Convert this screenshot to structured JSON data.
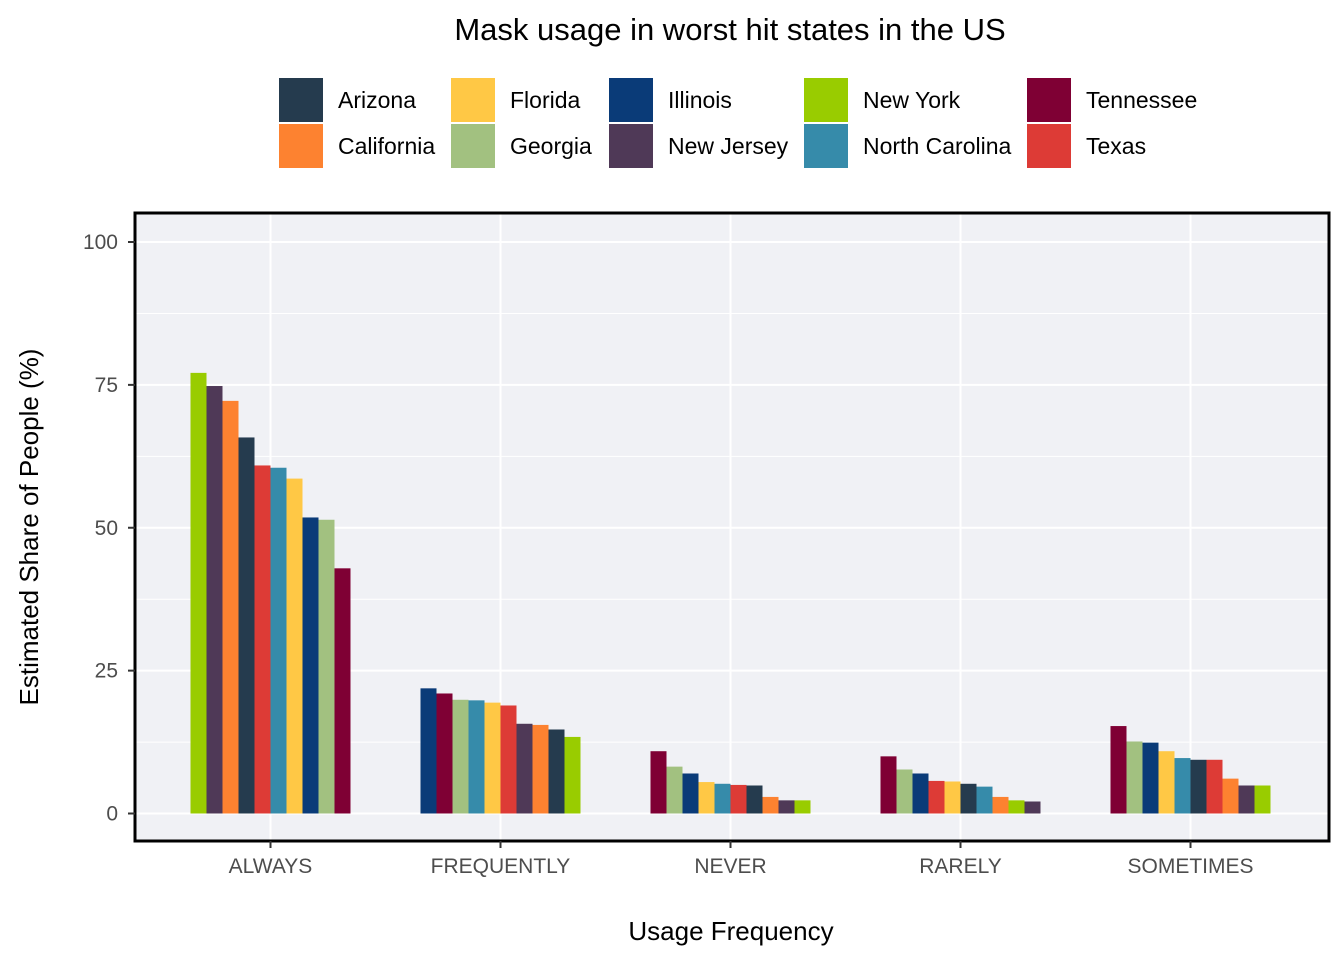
{
  "chart_data": {
    "type": "bar",
    "title": "Mask usage in worst hit states in the US",
    "xlabel": "Usage Frequency",
    "ylabel": "Estimated Share of People (%)",
    "ylim": [
      -5,
      105
    ],
    "yticks": [
      0,
      25,
      50,
      75,
      100
    ],
    "grid": true,
    "legend_position": "top",
    "categories": [
      "ALWAYS",
      "FREQUENTLY",
      "NEVER",
      "RARELY",
      "SOMETIMES"
    ],
    "series": [
      {
        "name": "Arizona",
        "color": "#253B4E",
        "values": [
          65.8,
          14.7,
          4.9,
          5.2,
          9.4
        ]
      },
      {
        "name": "California",
        "color": "#FD8230",
        "values": [
          72.2,
          15.5,
          2.9,
          2.9,
          6.1
        ]
      },
      {
        "name": "Florida",
        "color": "#FFC845",
        "values": [
          58.6,
          19.4,
          5.5,
          5.6,
          10.9
        ]
      },
      {
        "name": "Georgia",
        "color": "#A2C180",
        "values": [
          51.4,
          19.9,
          8.2,
          7.7,
          12.6
        ]
      },
      {
        "name": "Illinois",
        "color": "#0A3B78",
        "values": [
          51.8,
          21.9,
          7.0,
          7.0,
          12.4
        ]
      },
      {
        "name": "New Jersey",
        "color": "#4F3957",
        "values": [
          74.8,
          15.7,
          2.3,
          2.1,
          4.9
        ]
      },
      {
        "name": "New York",
        "color": "#99CC00",
        "values": [
          77.1,
          13.4,
          2.3,
          2.3,
          4.9
        ]
      },
      {
        "name": "North Carolina",
        "color": "#368BAA",
        "values": [
          60.5,
          19.8,
          5.2,
          4.7,
          9.7
        ]
      },
      {
        "name": "Tennessee",
        "color": "#7F0034",
        "values": [
          42.9,
          21.0,
          10.9,
          10.0,
          15.3
        ]
      },
      {
        "name": "Texas",
        "color": "#DD3B36",
        "values": [
          60.9,
          18.9,
          5.0,
          5.7,
          9.4
        ]
      }
    ]
  }
}
